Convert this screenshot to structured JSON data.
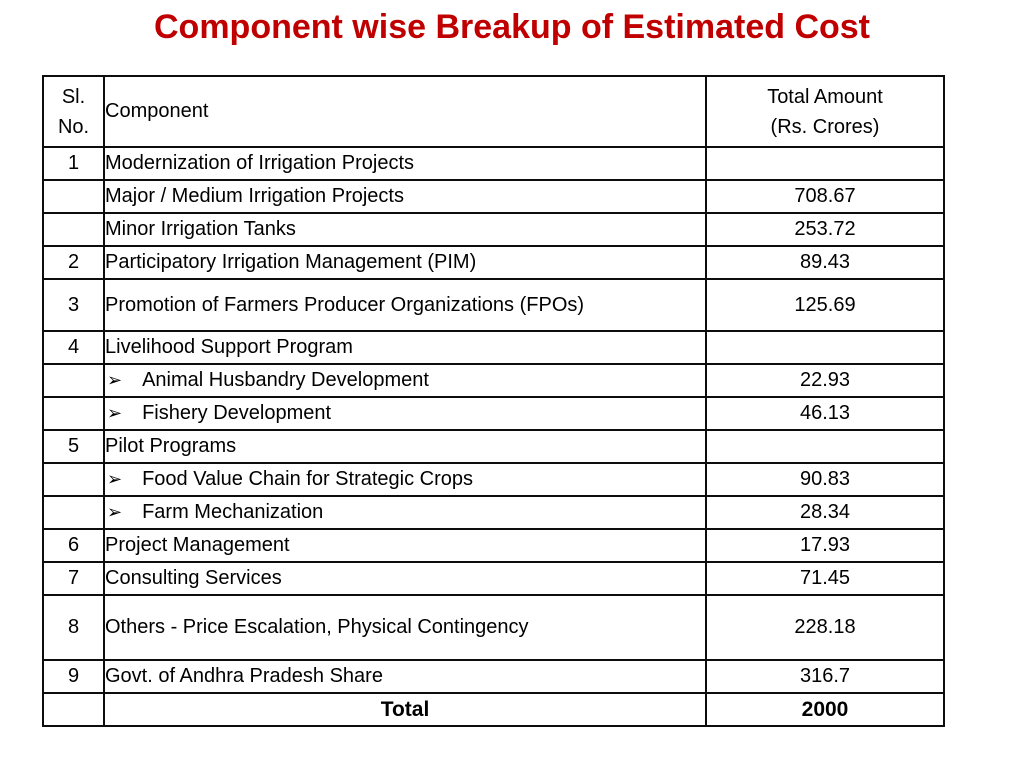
{
  "slide": {
    "title": "Component wise Breakup of Estimated Cost",
    "title_color": "#C00000"
  },
  "icons": {
    "arrow_bullet": "➢"
  },
  "table": {
    "headers": {
      "sl_line1": "Sl.",
      "sl_line2": "No.",
      "component": "Component",
      "amount_line1": "Total Amount",
      "amount_line2": "(Rs. Crores)"
    },
    "rows": [
      {
        "sl": "1",
        "component": "Modernization of Irrigation Projects",
        "amount": "",
        "bullet": false,
        "is_total": false
      },
      {
        "sl": "",
        "component": "Major / Medium Irrigation Projects",
        "amount": "708.67",
        "bullet": false,
        "is_total": false
      },
      {
        "sl": "",
        "component": "Minor Irrigation Tanks",
        "amount": "253.72",
        "bullet": false,
        "is_total": false
      },
      {
        "sl": "2",
        "component": "Participatory Irrigation Management (PIM)",
        "amount": "89.43",
        "bullet": false,
        "is_total": false
      },
      {
        "sl": "3",
        "component": "Promotion of Farmers Producer Organizations (FPOs)",
        "amount": "125.69",
        "bullet": false,
        "is_total": false
      },
      {
        "sl": "4",
        "component": "Livelihood Support Program",
        "amount": "",
        "bullet": false,
        "is_total": false
      },
      {
        "sl": "",
        "component": "Animal Husbandry Development",
        "amount": "22.93",
        "bullet": true,
        "is_total": false
      },
      {
        "sl": "",
        "component": "Fishery Development",
        "amount": "46.13",
        "bullet": true,
        "is_total": false
      },
      {
        "sl": "5",
        "component": "Pilot Programs",
        "amount": "",
        "bullet": false,
        "is_total": false
      },
      {
        "sl": "",
        "component": "Food Value Chain for Strategic Crops",
        "amount": "90.83",
        "bullet": true,
        "is_total": false
      },
      {
        "sl": "",
        "component": "Farm Mechanization",
        "amount": "28.34",
        "bullet": true,
        "is_total": false
      },
      {
        "sl": "6",
        "component": "Project Management",
        "amount": "17.93",
        "bullet": false,
        "is_total": false
      },
      {
        "sl": "7",
        "component": "Consulting Services",
        "amount": "71.45",
        "bullet": false,
        "is_total": false
      },
      {
        "sl": "8",
        "component": "Others - Price Escalation, Physical Contingency",
        "amount": "228.18",
        "bullet": false,
        "is_total": false
      },
      {
        "sl": "9",
        "component": "Govt. of Andhra Pradesh Share",
        "amount": "316.7",
        "bullet": false,
        "is_total": false
      },
      {
        "sl": "",
        "component": "Total",
        "amount": "2000",
        "bullet": false,
        "is_total": true
      }
    ]
  }
}
